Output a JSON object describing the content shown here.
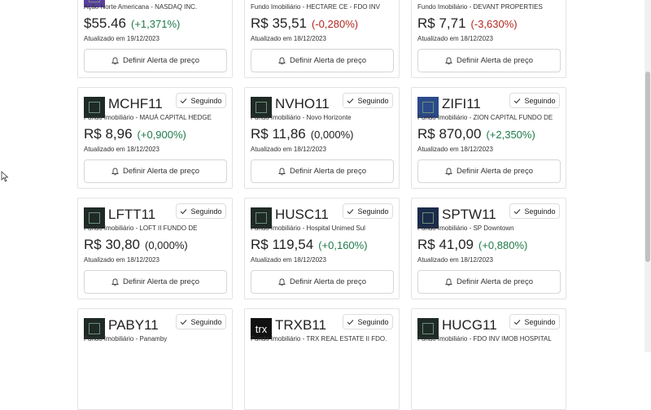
{
  "cards": [
    {
      "subtitle": "Ação Norte Americana - NASDAQ INC.",
      "price": "$55.46",
      "change": "(+1,371%)",
      "updated": "Atualizado em 19/12/2023",
      "button": "Definir Alerta de preço",
      "logo_color": "#5b3fa0"
    },
    {
      "subtitle": "Fundo Imobiliário - HECTARE CE - FDO INV",
      "price": "R$ 35,51",
      "change": "(-0,280%)",
      "updated": "Atualizado em 18/12/2023",
      "button": "Definir Alerta de preço"
    },
    {
      "subtitle": "Fundo Imobiliário - DEVANT PROPERTIES",
      "price": "R$ 7,71",
      "change": "(-3,630%)",
      "updated": "Atualizado em 18/12/2023",
      "button": "Definir Alerta de preço"
    },
    {
      "ticker": "MCHF11",
      "follow": "Seguindo",
      "subtitle": "Fundo Imobiliário - MAUÁ CAPITAL HEDGE",
      "price": "R$ 8,96",
      "change": "(+0,900%)",
      "updated": "Atualizado em 18/12/2023",
      "button": "Definir Alerta de preço",
      "logo_color": "#1f2a26"
    },
    {
      "ticker": "NVHO11",
      "follow": "Seguindo",
      "subtitle": "Fundo Imobiliário - Novo Horizonte",
      "price": "R$ 11,86",
      "change": "(0,000%)",
      "updated": "Atualizado em 18/12/2023",
      "button": "Definir Alerta de preço",
      "logo_color": "#1f2a26"
    },
    {
      "ticker": "ZIFI11",
      "follow": "Seguindo",
      "subtitle": "Fundo Imobiliário - ZION CAPITAL FUNDO DE",
      "price": "R$ 870,00",
      "change": "(+2,350%)",
      "updated": "Atualizado em 18/12/2023",
      "button": "Definir Alerta de preço",
      "logo_color": "#2b4a8a"
    },
    {
      "ticker": "LFTT11",
      "follow": "Seguindo",
      "subtitle": "Fundo Imobiliário - LOFT II FUNDO DE",
      "price": "R$ 30,80",
      "change": "(0,000%)",
      "updated": "Atualizado em 18/12/2023",
      "button": "Definir Alerta de preço",
      "logo_color": "#1f2a26"
    },
    {
      "ticker": "HUSC11",
      "follow": "Seguindo",
      "subtitle": "Fundo Imobiliário - Hospital Unimed Sul",
      "price": "R$ 119,54",
      "change": "(+0,160%)",
      "updated": "Atualizado em 18/12/2023",
      "button": "Definir Alerta de preço",
      "logo_color": "#1f2a26"
    },
    {
      "ticker": "SPTW11",
      "follow": "Seguindo",
      "subtitle": "Fundo Imobiliário - SP Downtown",
      "price": "R$ 41,09",
      "change": "(+0,880%)",
      "updated": "Atualizado em 18/12/2023",
      "button": "Definir Alerta de preço",
      "logo_color": "#1b2b4a"
    },
    {
      "ticker": "PABY11",
      "follow": "Seguindo",
      "subtitle": "Fundo Imobiliário - Panamby",
      "logo_color": "#1f2a26"
    },
    {
      "ticker": "TRXB11",
      "follow": "Seguindo",
      "subtitle": "Fundo Imobiliário - TRX REAL ESTATE II FDO.",
      "logo_color": "#111111",
      "logo_text": "trx"
    },
    {
      "ticker": "HUCG11",
      "follow": "Seguindo",
      "subtitle": "Fundo Imobiliário - FDO INV IMOB HOSPITAL",
      "logo_color": "#1f2a26"
    }
  ]
}
